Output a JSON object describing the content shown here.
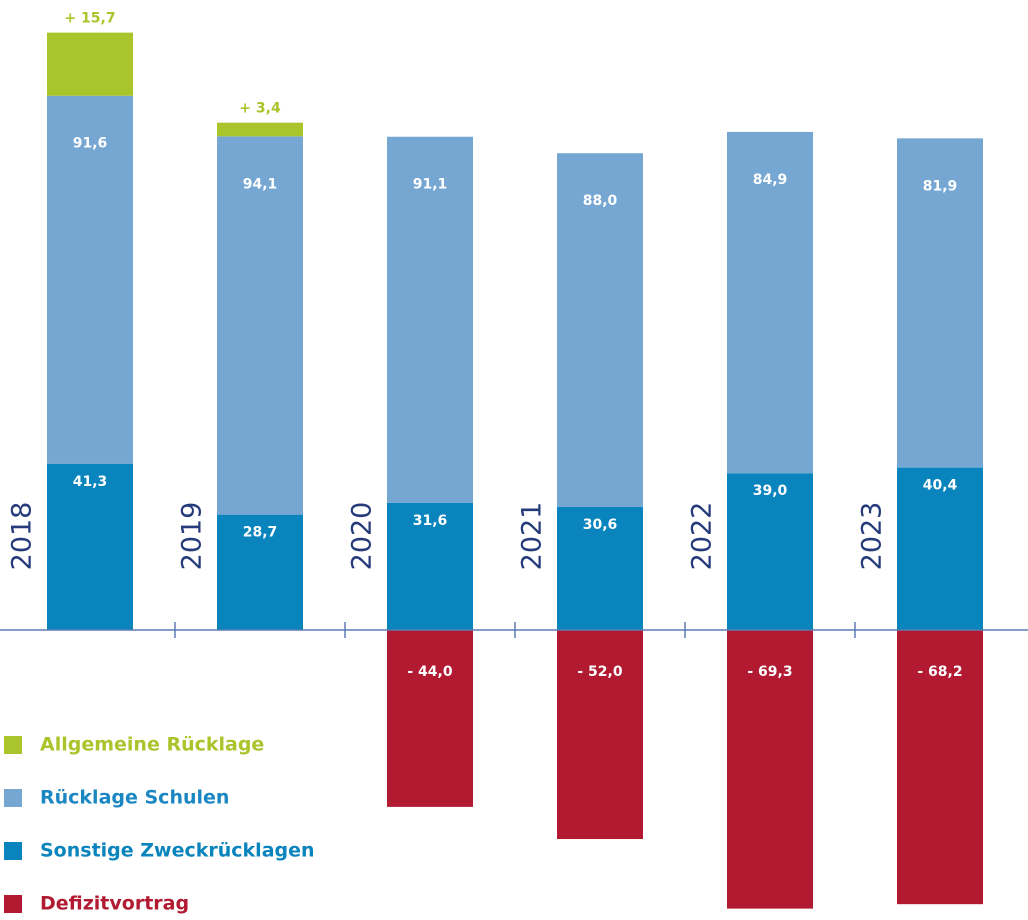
{
  "chart_data": {
    "type": "stacked-bar",
    "categories": [
      "2018",
      "2019",
      "2020",
      "2021",
      "2022",
      "2023"
    ],
    "series": [
      {
        "name": "Allgemeine Rücklage",
        "color": "#a9c52b",
        "values": [
          15.7,
          3.4,
          null,
          null,
          null,
          null
        ],
        "value_labels": [
          "+ 15,7",
          "+ 3,4",
          null,
          null,
          null,
          null
        ]
      },
      {
        "name": "Rücklage Schulen",
        "color": "#76a7d3",
        "values": [
          91.6,
          94.1,
          91.1,
          88.0,
          84.9,
          81.9
        ],
        "value_labels": [
          "91,6",
          "94,1",
          "91,1",
          "88,0",
          "84,9",
          "81,9"
        ]
      },
      {
        "name": "Sonstige Zweckrücklagen",
        "color": "#0a84bd",
        "values": [
          41.3,
          28.7,
          31.6,
          30.6,
          39.0,
          40.4
        ],
        "value_labels": [
          "41,3",
          "28,7",
          "31,6",
          "30,6",
          "39,0",
          "40,4"
        ]
      },
      {
        "name": "Defizitvortrag",
        "color": "#b11a31",
        "values": [
          null,
          null,
          -44.0,
          -52.0,
          -69.3,
          -68.2
        ],
        "value_labels": [
          null,
          null,
          "- 44,0",
          "- 52,0",
          "- 69,3",
          "- 68,2"
        ]
      }
    ]
  }
}
